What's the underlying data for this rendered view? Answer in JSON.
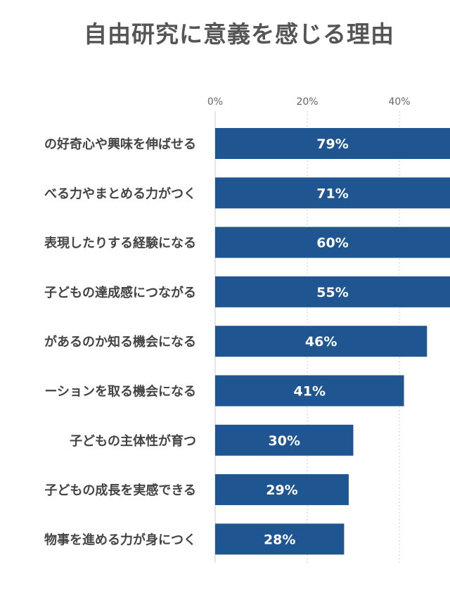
{
  "chart_data": {
    "type": "bar",
    "orientation": "horizontal",
    "title": "自由研究に意義を感じる理由",
    "categories": [
      "の好奇心や興味を伸ばせる",
      "べる力やまとめる力がつく",
      "表現したりする経験になる",
      "子どもの達成感につながる",
      "があるのか知る機会になる",
      "ーションを取る機会になる",
      "子どもの主体性が育つ",
      "子どもの成長を実感できる",
      "物事を進める力が身につく"
    ],
    "values": [
      79,
      71,
      60,
      55,
      46,
      41,
      30,
      29,
      28
    ],
    "value_labels": [
      "79%",
      "71%",
      "60%",
      "55%",
      "46%",
      "41%",
      "30%",
      "29%",
      "28%"
    ],
    "x_ticks": [
      0,
      20,
      40
    ],
    "x_tick_labels": [
      "0%",
      "20%",
      "40%"
    ],
    "xlim": [
      0,
      100
    ],
    "grid": true,
    "bar_color": "#1f5591"
  }
}
